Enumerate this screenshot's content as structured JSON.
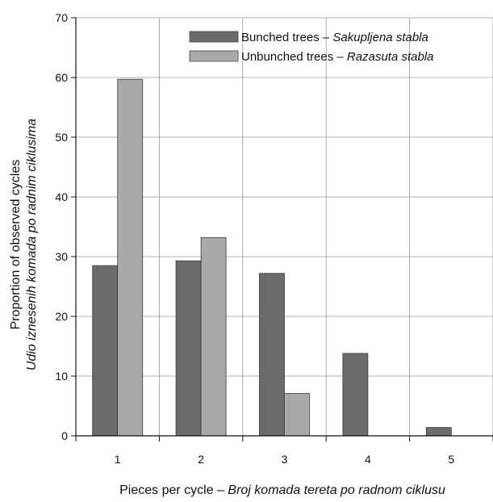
{
  "chart_data": {
    "type": "bar",
    "categories": [
      "1",
      "2",
      "3",
      "4",
      "5"
    ],
    "series": [
      {
        "name": "Bunched trees – Sakupljena stabla",
        "name_main": "Bunched trees – ",
        "name_italic": "Sakupljena stabla",
        "color": "#6b6b6b",
        "values": [
          28.5,
          29.3,
          27.2,
          13.8,
          1.4
        ]
      },
      {
        "name": "Unbunched trees – Razasuta stabla",
        "name_main": "Unbunched trees – ",
        "name_italic": "Razasuta stabla",
        "color": "#a9a9a9",
        "values": [
          59.7,
          33.2,
          7.1,
          0,
          0
        ]
      }
    ],
    "ylim": [
      0,
      70
    ],
    "yticks": [
      "0",
      "10",
      "20",
      "30",
      "40",
      "50",
      "60",
      "70"
    ],
    "xlabel_main": "Pieces per cycle – ",
    "xlabel_italic": "Broj komada tereta po radnom ciklusu",
    "ylabel_line1": "Proportion of observed cycles",
    "ylabel_line2": "Udio iznesenih komada po radnim ciklusima",
    "grid": true,
    "legend_position": "top-right"
  }
}
